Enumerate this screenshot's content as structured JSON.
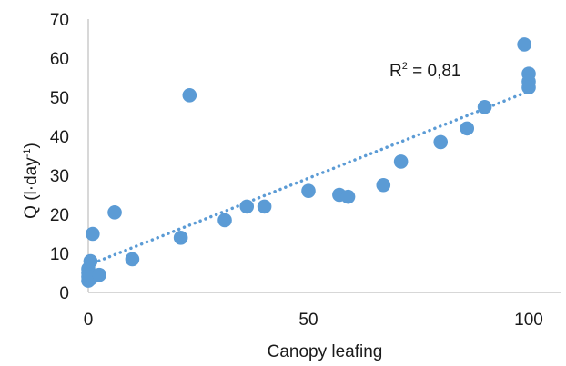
{
  "chart_data": {
    "type": "scatter",
    "title": "",
    "xlabel": "Canopy leafing",
    "ylabel_main": "Q (l·day",
    "ylabel_sup": "-1",
    "ylabel_close": ")",
    "xlim": [
      0,
      100
    ],
    "ylim": [
      0,
      70
    ],
    "xticks": [
      "0",
      "50",
      "100"
    ],
    "yticks": [
      "0",
      "10",
      "20",
      "30",
      "40",
      "50",
      "60",
      "70"
    ],
    "grid": false,
    "color": "#5b9bd5",
    "points": [
      {
        "x": 0,
        "y": 3
      },
      {
        "x": 0,
        "y": 4
      },
      {
        "x": 0,
        "y": 5
      },
      {
        "x": 0,
        "y": 6
      },
      {
        "x": 0.5,
        "y": 3.5
      },
      {
        "x": 0.5,
        "y": 8
      },
      {
        "x": 0.5,
        "y": 4.5
      },
      {
        "x": 1,
        "y": 4
      },
      {
        "x": 1,
        "y": 15
      },
      {
        "x": 2.5,
        "y": 4.5
      },
      {
        "x": 6,
        "y": 20.5
      },
      {
        "x": 10,
        "y": 8.5
      },
      {
        "x": 21,
        "y": 14
      },
      {
        "x": 23,
        "y": 50.5
      },
      {
        "x": 31,
        "y": 18.5
      },
      {
        "x": 36,
        "y": 22
      },
      {
        "x": 40,
        "y": 22
      },
      {
        "x": 50,
        "y": 26
      },
      {
        "x": 57,
        "y": 25
      },
      {
        "x": 59,
        "y": 24.5
      },
      {
        "x": 67,
        "y": 27.5
      },
      {
        "x": 71,
        "y": 33.5
      },
      {
        "x": 80,
        "y": 38.5
      },
      {
        "x": 86,
        "y": 42
      },
      {
        "x": 90,
        "y": 47.5
      },
      {
        "x": 99,
        "y": 63.5
      },
      {
        "x": 100,
        "y": 56
      },
      {
        "x": 100,
        "y": 54
      },
      {
        "x": 100,
        "y": 52.5
      }
    ],
    "trendline": {
      "style": "dotted",
      "x": [
        0,
        100
      ],
      "y": [
        7,
        51.5
      ]
    },
    "annotation": {
      "text_main": "R",
      "text_sup": "2",
      "text_rest": " = 0,81"
    }
  }
}
